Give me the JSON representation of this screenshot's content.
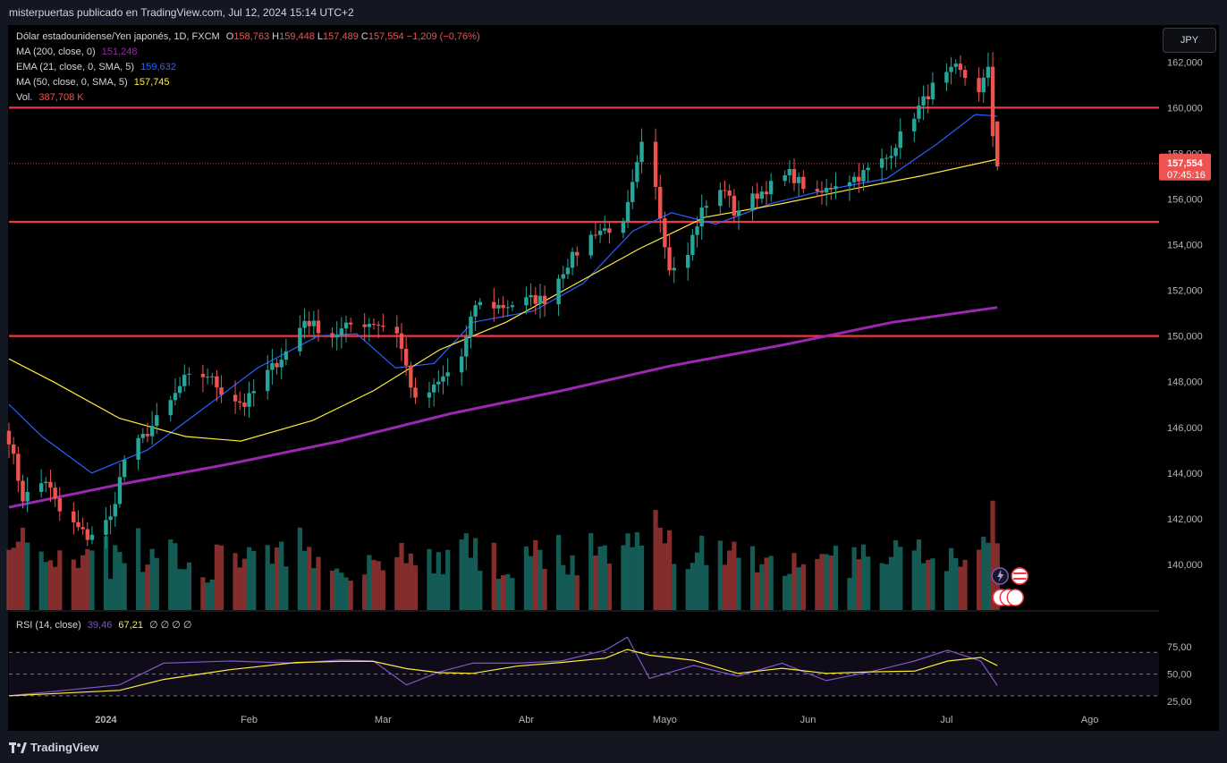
{
  "header": {
    "publisher": "misterpuertas publicado en TradingView.com, Jul 12, 2024 15:14 UTC+2"
  },
  "legend": {
    "symbol": "Dólar estadounidense/Yen japonés, 1D, FXCM",
    "ohlc": {
      "o_label": "O",
      "o": "158,763",
      "h_label": "H",
      "h": "159,448",
      "l_label": "L",
      "l": "157,489",
      "c_label": "C",
      "c": "157,554",
      "chg": "−1,209 (−0,76%)"
    },
    "ma200": {
      "label": "MA (200, close, 0)",
      "value": "151,248"
    },
    "ema21": {
      "label": "EMA (21, close, 0, SMA, 5)",
      "value": "159,632"
    },
    "ma50": {
      "label": "MA (50, close, 0, SMA, 5)",
      "value": "157,745"
    },
    "vol": {
      "label": "Vol.",
      "value": "387,708 K"
    },
    "rsi": {
      "label": "RSI (14, close)",
      "value": "39,46",
      "ma": "67,21",
      "extra": "∅ ∅ ∅ ∅"
    }
  },
  "currency_button": "JPY",
  "price_badge": {
    "price": "157,554",
    "countdown": "07:45:16"
  },
  "footer": {
    "brand": "TradingView"
  },
  "colors": {
    "up": "#26a69a",
    "down": "#ef5350",
    "ma200": "#9c27b0",
    "ema21": "#2962ff",
    "ma50": "#ffeb3b",
    "rsi": "#7e57c2",
    "rsi_ma": "#ffeb3b",
    "hline": "#f23645"
  },
  "chart_data": {
    "type": "candlestick",
    "x_range": [
      "2023-12-11",
      "2024-08-16"
    ],
    "y_range": [
      138.0,
      163.5
    ],
    "x_ticks": [
      {
        "label": "2024",
        "date": "2024-01-01"
      },
      {
        "label": "Feb",
        "date": "2024-02-01"
      },
      {
        "label": "Mar",
        "date": "2024-03-01"
      },
      {
        "label": "Abr",
        "date": "2024-04-01"
      },
      {
        "label": "Mayo",
        "date": "2024-05-01"
      },
      {
        "label": "Jun",
        "date": "2024-06-01"
      },
      {
        "label": "Jul",
        "date": "2024-07-01"
      },
      {
        "label": "Ago",
        "date": "2024-08-01"
      }
    ],
    "y_ticks": [
      {
        "v": 140,
        "label": "140,000"
      },
      {
        "v": 142,
        "label": "142,000"
      },
      {
        "v": 144,
        "label": "144,000"
      },
      {
        "v": 146,
        "label": "146,000"
      },
      {
        "v": 148,
        "label": "148,000"
      },
      {
        "v": 150,
        "label": "150,000"
      },
      {
        "v": 152,
        "label": "152,000"
      },
      {
        "v": 154,
        "label": "154,000"
      },
      {
        "v": 156,
        "label": "156,000"
      },
      {
        "v": 158,
        "label": "158,000"
      },
      {
        "v": 160,
        "label": "160,000"
      },
      {
        "v": 162,
        "label": "162,000"
      }
    ],
    "horizontal_levels": [
      150.0,
      155.0,
      160.0
    ],
    "last_price": 157.554,
    "closes": [
      {
        "date": "2023-12-11",
        "close": 145.5
      },
      {
        "date": "2023-12-14",
        "close": 142.9
      },
      {
        "date": "2023-12-19",
        "close": 143.7
      },
      {
        "date": "2023-12-22",
        "close": 142.3
      },
      {
        "date": "2023-12-28",
        "close": 141.2
      },
      {
        "date": "2024-01-02",
        "close": 142.0
      },
      {
        "date": "2024-01-05",
        "close": 144.6
      },
      {
        "date": "2024-01-10",
        "close": 145.8
      },
      {
        "date": "2024-01-15",
        "close": 147.1
      },
      {
        "date": "2024-01-18",
        "close": 148.1
      },
      {
        "date": "2024-01-23",
        "close": 148.3
      },
      {
        "date": "2024-01-26",
        "close": 147.6
      },
      {
        "date": "2024-01-31",
        "close": 147.0
      },
      {
        "date": "2024-02-05",
        "close": 148.4
      },
      {
        "date": "2024-02-09",
        "close": 149.3
      },
      {
        "date": "2024-02-13",
        "close": 150.7
      },
      {
        "date": "2024-02-19",
        "close": 150.0
      },
      {
        "date": "2024-02-23",
        "close": 150.5
      },
      {
        "date": "2024-02-28",
        "close": 150.6
      },
      {
        "date": "2024-03-04",
        "close": 150.2
      },
      {
        "date": "2024-03-08",
        "close": 147.1
      },
      {
        "date": "2024-03-12",
        "close": 147.7
      },
      {
        "date": "2024-03-18",
        "close": 149.1
      },
      {
        "date": "2024-03-21",
        "close": 151.4
      },
      {
        "date": "2024-03-27",
        "close": 151.3
      },
      {
        "date": "2024-04-02",
        "close": 151.6
      },
      {
        "date": "2024-04-05",
        "close": 151.6
      },
      {
        "date": "2024-04-10",
        "close": 153.2
      },
      {
        "date": "2024-04-16",
        "close": 154.6
      },
      {
        "date": "2024-04-22",
        "close": 154.8
      },
      {
        "date": "2024-04-26",
        "close": 158.3
      },
      {
        "date": "2024-04-29",
        "close": 156.4
      },
      {
        "date": "2024-05-02",
        "close": 153.0
      },
      {
        "date": "2024-05-06",
        "close": 153.8
      },
      {
        "date": "2024-05-09",
        "close": 155.5
      },
      {
        "date": "2024-05-14",
        "close": 156.5
      },
      {
        "date": "2024-05-16",
        "close": 155.4
      },
      {
        "date": "2024-05-21",
        "close": 156.2
      },
      {
        "date": "2024-05-28",
        "close": 157.1
      },
      {
        "date": "2024-06-03",
        "close": 156.1
      },
      {
        "date": "2024-06-07",
        "close": 156.7
      },
      {
        "date": "2024-06-12",
        "close": 157.0
      },
      {
        "date": "2024-06-18",
        "close": 157.8
      },
      {
        "date": "2024-06-24",
        "close": 159.7
      },
      {
        "date": "2024-06-28",
        "close": 160.9
      },
      {
        "date": "2024-07-03",
        "close": 161.7
      },
      {
        "date": "2024-07-08",
        "close": 160.8
      },
      {
        "date": "2024-07-10",
        "close": 161.6
      },
      {
        "date": "2024-07-11",
        "close": 158.8
      },
      {
        "date": "2024-07-12",
        "close": 157.554
      }
    ],
    "series": [
      {
        "name": "MA (200, close, 0)",
        "points": [
          [
            0,
            142.5
          ],
          [
            20,
            143.5
          ],
          [
            40,
            144.4
          ],
          [
            60,
            145.4
          ],
          [
            80,
            146.6
          ],
          [
            100,
            147.6
          ],
          [
            120,
            148.7
          ],
          [
            140,
            149.6
          ],
          [
            160,
            150.6
          ],
          [
            179,
            151.25
          ]
        ]
      },
      {
        "name": "EMA (21, close, 0, SMA, 5)",
        "points": [
          [
            0,
            147.0
          ],
          [
            6,
            145.6
          ],
          [
            15,
            144.0
          ],
          [
            25,
            145.0
          ],
          [
            34,
            146.6
          ],
          [
            45,
            148.6
          ],
          [
            56,
            150.0
          ],
          [
            63,
            150.1
          ],
          [
            70,
            148.6
          ],
          [
            77,
            148.8
          ],
          [
            84,
            150.6
          ],
          [
            95,
            151.1
          ],
          [
            104,
            152.3
          ],
          [
            113,
            154.6
          ],
          [
            120,
            155.4
          ],
          [
            128,
            154.9
          ],
          [
            138,
            155.8
          ],
          [
            148,
            156.4
          ],
          [
            159,
            156.9
          ],
          [
            168,
            158.4
          ],
          [
            175,
            159.7
          ],
          [
            179,
            159.63
          ]
        ]
      },
      {
        "name": "MA (50, close, 0, SMA, 5)",
        "points": [
          [
            0,
            149.0
          ],
          [
            8,
            148.0
          ],
          [
            20,
            146.4
          ],
          [
            32,
            145.6
          ],
          [
            42,
            145.4
          ],
          [
            55,
            146.3
          ],
          [
            66,
            147.6
          ],
          [
            78,
            149.4
          ],
          [
            90,
            150.6
          ],
          [
            102,
            152.2
          ],
          [
            114,
            153.8
          ],
          [
            126,
            155.2
          ],
          [
            140,
            155.8
          ],
          [
            152,
            156.4
          ],
          [
            165,
            157.0
          ],
          [
            179,
            157.74
          ]
        ]
      },
      {
        "name": "Vol.",
        "last": 387708
      },
      {
        "name": "RSI (14, close)",
        "points": [
          [
            0,
            30
          ],
          [
            10,
            35
          ],
          [
            20,
            40
          ],
          [
            28,
            60
          ],
          [
            40,
            62
          ],
          [
            52,
            60
          ],
          [
            60,
            63
          ],
          [
            66,
            62
          ],
          [
            72,
            40
          ],
          [
            78,
            52
          ],
          [
            84,
            60
          ],
          [
            92,
            60
          ],
          [
            100,
            62
          ],
          [
            108,
            72
          ],
          [
            112,
            84
          ],
          [
            116,
            46
          ],
          [
            124,
            58
          ],
          [
            132,
            48
          ],
          [
            140,
            60
          ],
          [
            148,
            44
          ],
          [
            156,
            52
          ],
          [
            164,
            62
          ],
          [
            170,
            72
          ],
          [
            176,
            62
          ],
          [
            179,
            39.46
          ]
        ],
        "last": 39.46,
        "ma_last": 67.21,
        "y_ticks": [
          {
            "v": 25,
            "label": "25,00"
          },
          {
            "v": 50,
            "label": "50,00"
          },
          {
            "v": 75,
            "label": "75,00"
          }
        ],
        "band": [
          30,
          70
        ]
      }
    ]
  }
}
